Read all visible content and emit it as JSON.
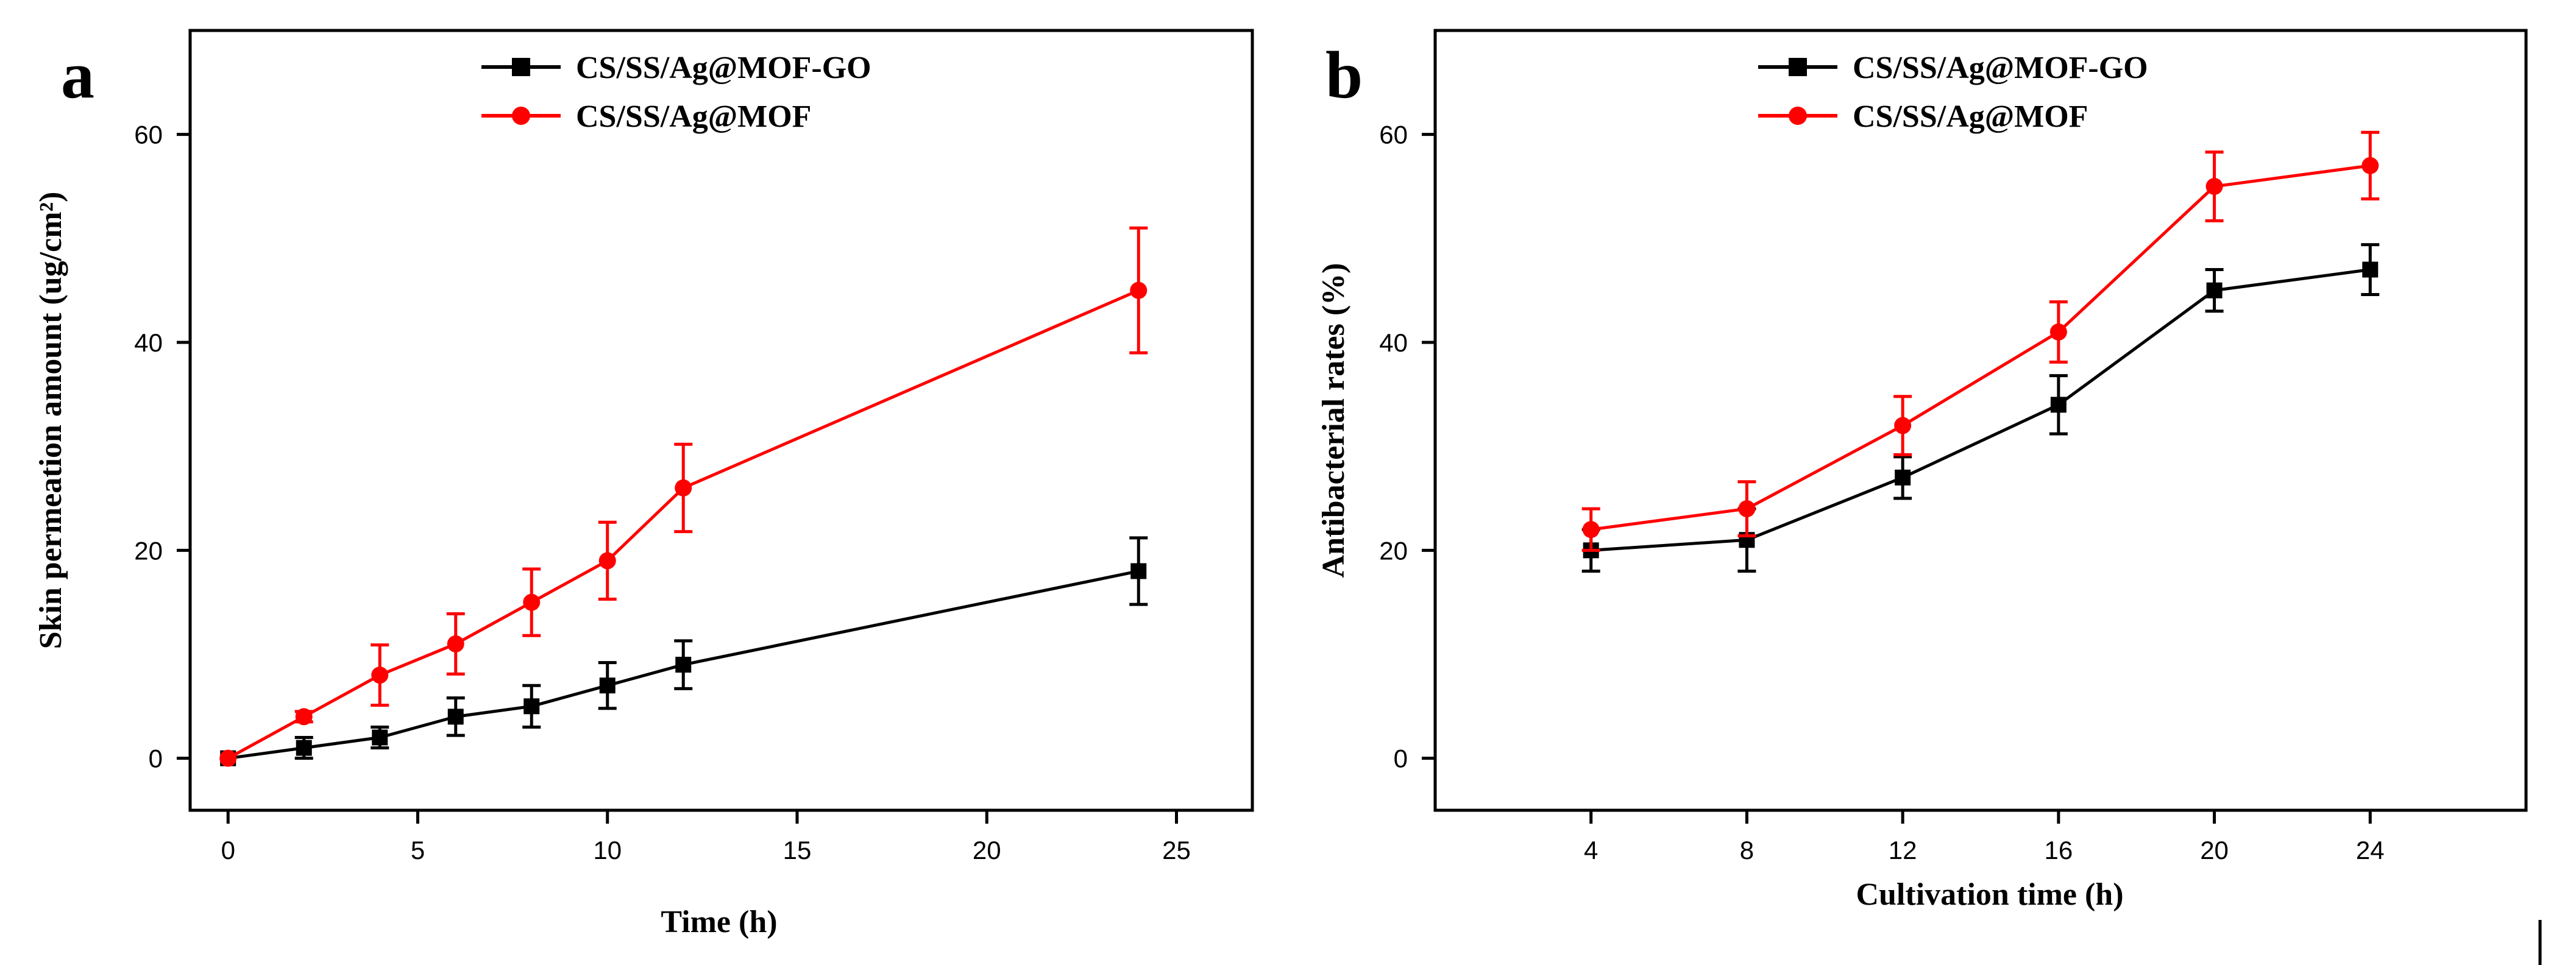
{
  "chart_data": [
    {
      "panel_label": "a",
      "type": "line",
      "xlabel": "Time (h)",
      "ylabel": "Skin permeation amount (ug/cm²)",
      "xlim": [
        -1,
        27
      ],
      "ylim": [
        -5,
        70
      ],
      "xticks": [
        0,
        5,
        10,
        15,
        20,
        25
      ],
      "yticks": [
        0,
        20,
        40,
        60
      ],
      "legend": "top-center",
      "series": [
        {
          "name": "CS/SS/Ag@MOF-GO",
          "color": "#000000",
          "marker": "square",
          "x": [
            0,
            2,
            4,
            6,
            8,
            10,
            12,
            24
          ],
          "y": [
            0,
            1,
            2,
            4,
            5,
            7,
            9,
            18
          ],
          "err": [
            0,
            1,
            1,
            1.8,
            2,
            2.2,
            2.3,
            3.2
          ]
        },
        {
          "name": "CS/SS/Ag@MOF",
          "color": "#ff0000",
          "marker": "circle",
          "x": [
            0,
            2,
            4,
            6,
            8,
            10,
            12,
            24
          ],
          "y": [
            0,
            4,
            8,
            11,
            15,
            19,
            26,
            45
          ],
          "err": [
            0,
            0.5,
            2.9,
            2.9,
            3.2,
            3.7,
            4.2,
            6
          ]
        }
      ]
    },
    {
      "panel_label": "b",
      "type": "line",
      "xlabel": "Cultivation time (h)",
      "ylabel": "Antibacterial rates (%)",
      "xlim": [
        0,
        28
      ],
      "ylim": [
        -5,
        70
      ],
      "xticks": [
        4,
        8,
        12,
        16,
        20,
        24
      ],
      "yticks": [
        0,
        20,
        40,
        60
      ],
      "legend": "top-center",
      "series": [
        {
          "name": "CS/SS/Ag@MOF-GO",
          "color": "#000000",
          "marker": "square",
          "x": [
            4,
            8,
            12,
            16,
            20,
            24
          ],
          "y": [
            20,
            21,
            27,
            34,
            45,
            47
          ],
          "err": [
            2,
            3,
            2,
            2.8,
            2,
            2.4
          ]
        },
        {
          "name": "CS/SS/Ag@MOF",
          "color": "#ff0000",
          "marker": "circle",
          "x": [
            4,
            8,
            12,
            16,
            20,
            24
          ],
          "y": [
            22,
            24,
            32,
            41,
            55,
            57
          ],
          "err": [
            2,
            2.6,
            2.8,
            2.9,
            3.3,
            3.2
          ]
        }
      ]
    }
  ]
}
